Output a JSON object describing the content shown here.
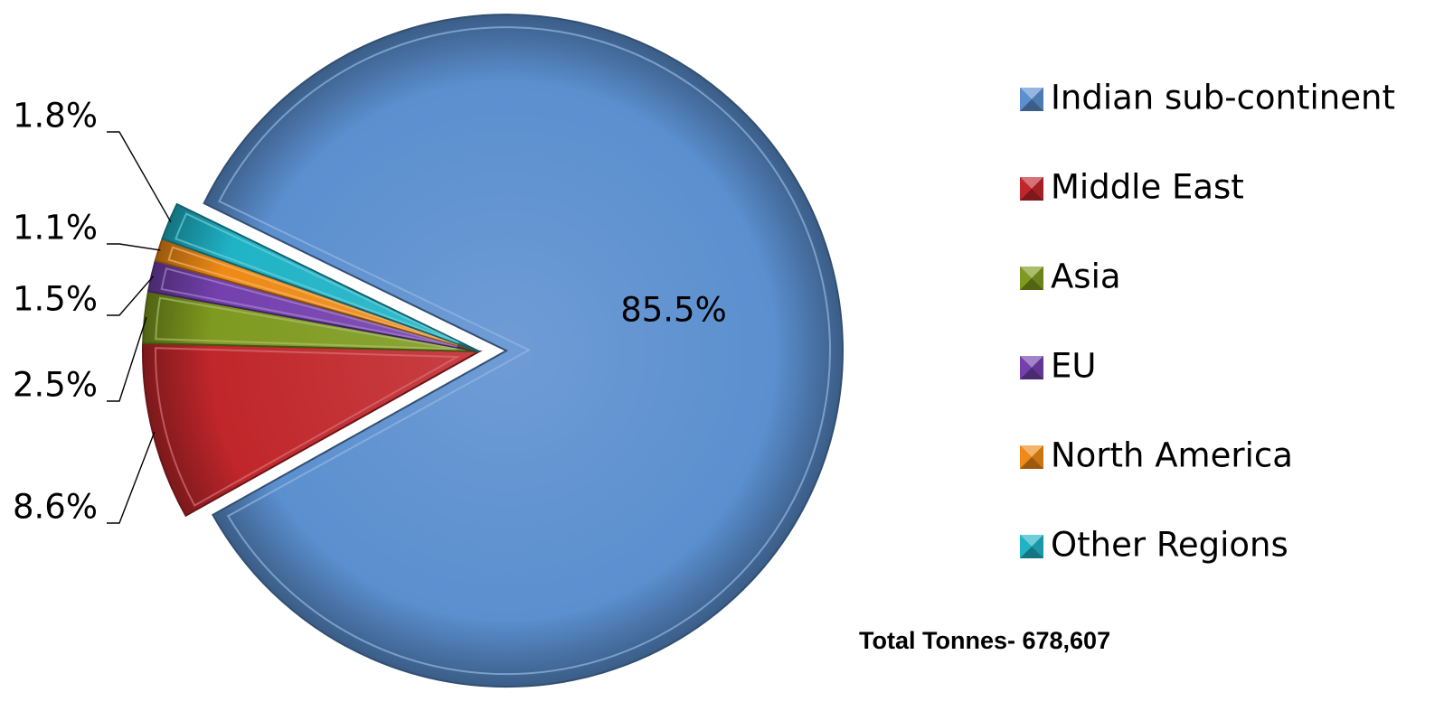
{
  "chart_data": {
    "type": "pie",
    "categories": [
      "Indian sub-continent",
      "Middle East",
      "Asia",
      "EU",
      "North America",
      "Other Regions"
    ],
    "values": [
      85.5,
      8.6,
      2.5,
      1.5,
      1.1,
      1.8
    ],
    "labels": [
      "85.5%",
      "8.6%",
      "2.5%",
      "1.5%",
      "1.1%",
      "1.8%"
    ],
    "colors": [
      "#5b8fcf",
      "#c0262b",
      "#7e9a1f",
      "#7340ad",
      "#ee8a16",
      "#1fb3c6"
    ],
    "legend_position": "right"
  },
  "total_label": "Total Tonnes- 678,607"
}
